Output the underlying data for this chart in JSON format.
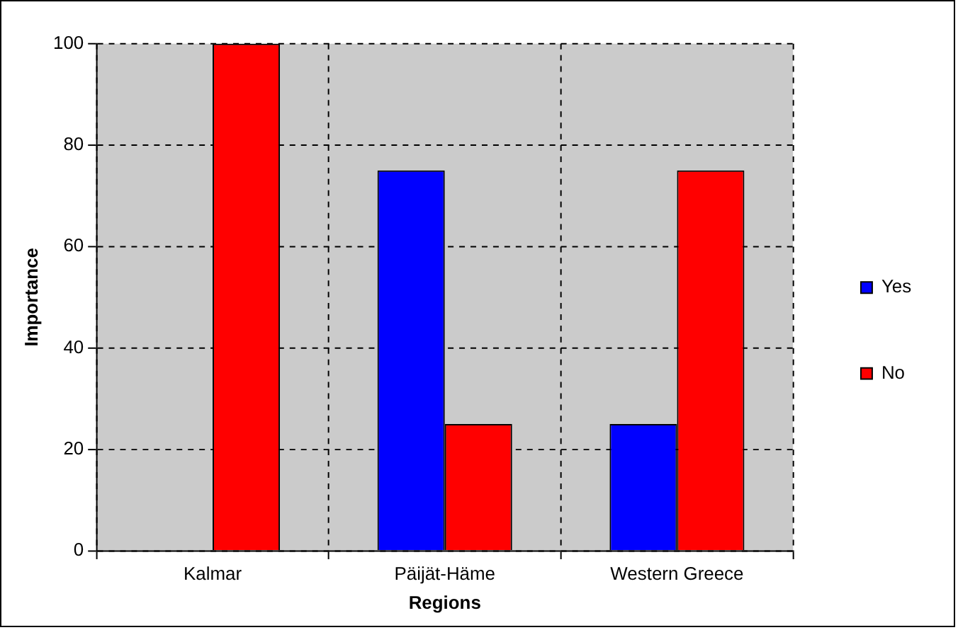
{
  "chart_data": {
    "type": "bar",
    "xlabel": "Regions",
    "ylabel": "Importance",
    "categories": [
      "Kalmar",
      "Päijät-Häme",
      "Western Greece"
    ],
    "series": [
      {
        "name": "Yes",
        "color": "#0000ff",
        "values": [
          0,
          75,
          25
        ]
      },
      {
        "name": "No",
        "color": "#ff0000",
        "values": [
          100,
          25,
          75
        ]
      }
    ],
    "ylim": [
      0,
      100
    ],
    "yticks": [
      0,
      20,
      40,
      60,
      80,
      100
    ],
    "grid": true,
    "legend": "right"
  }
}
